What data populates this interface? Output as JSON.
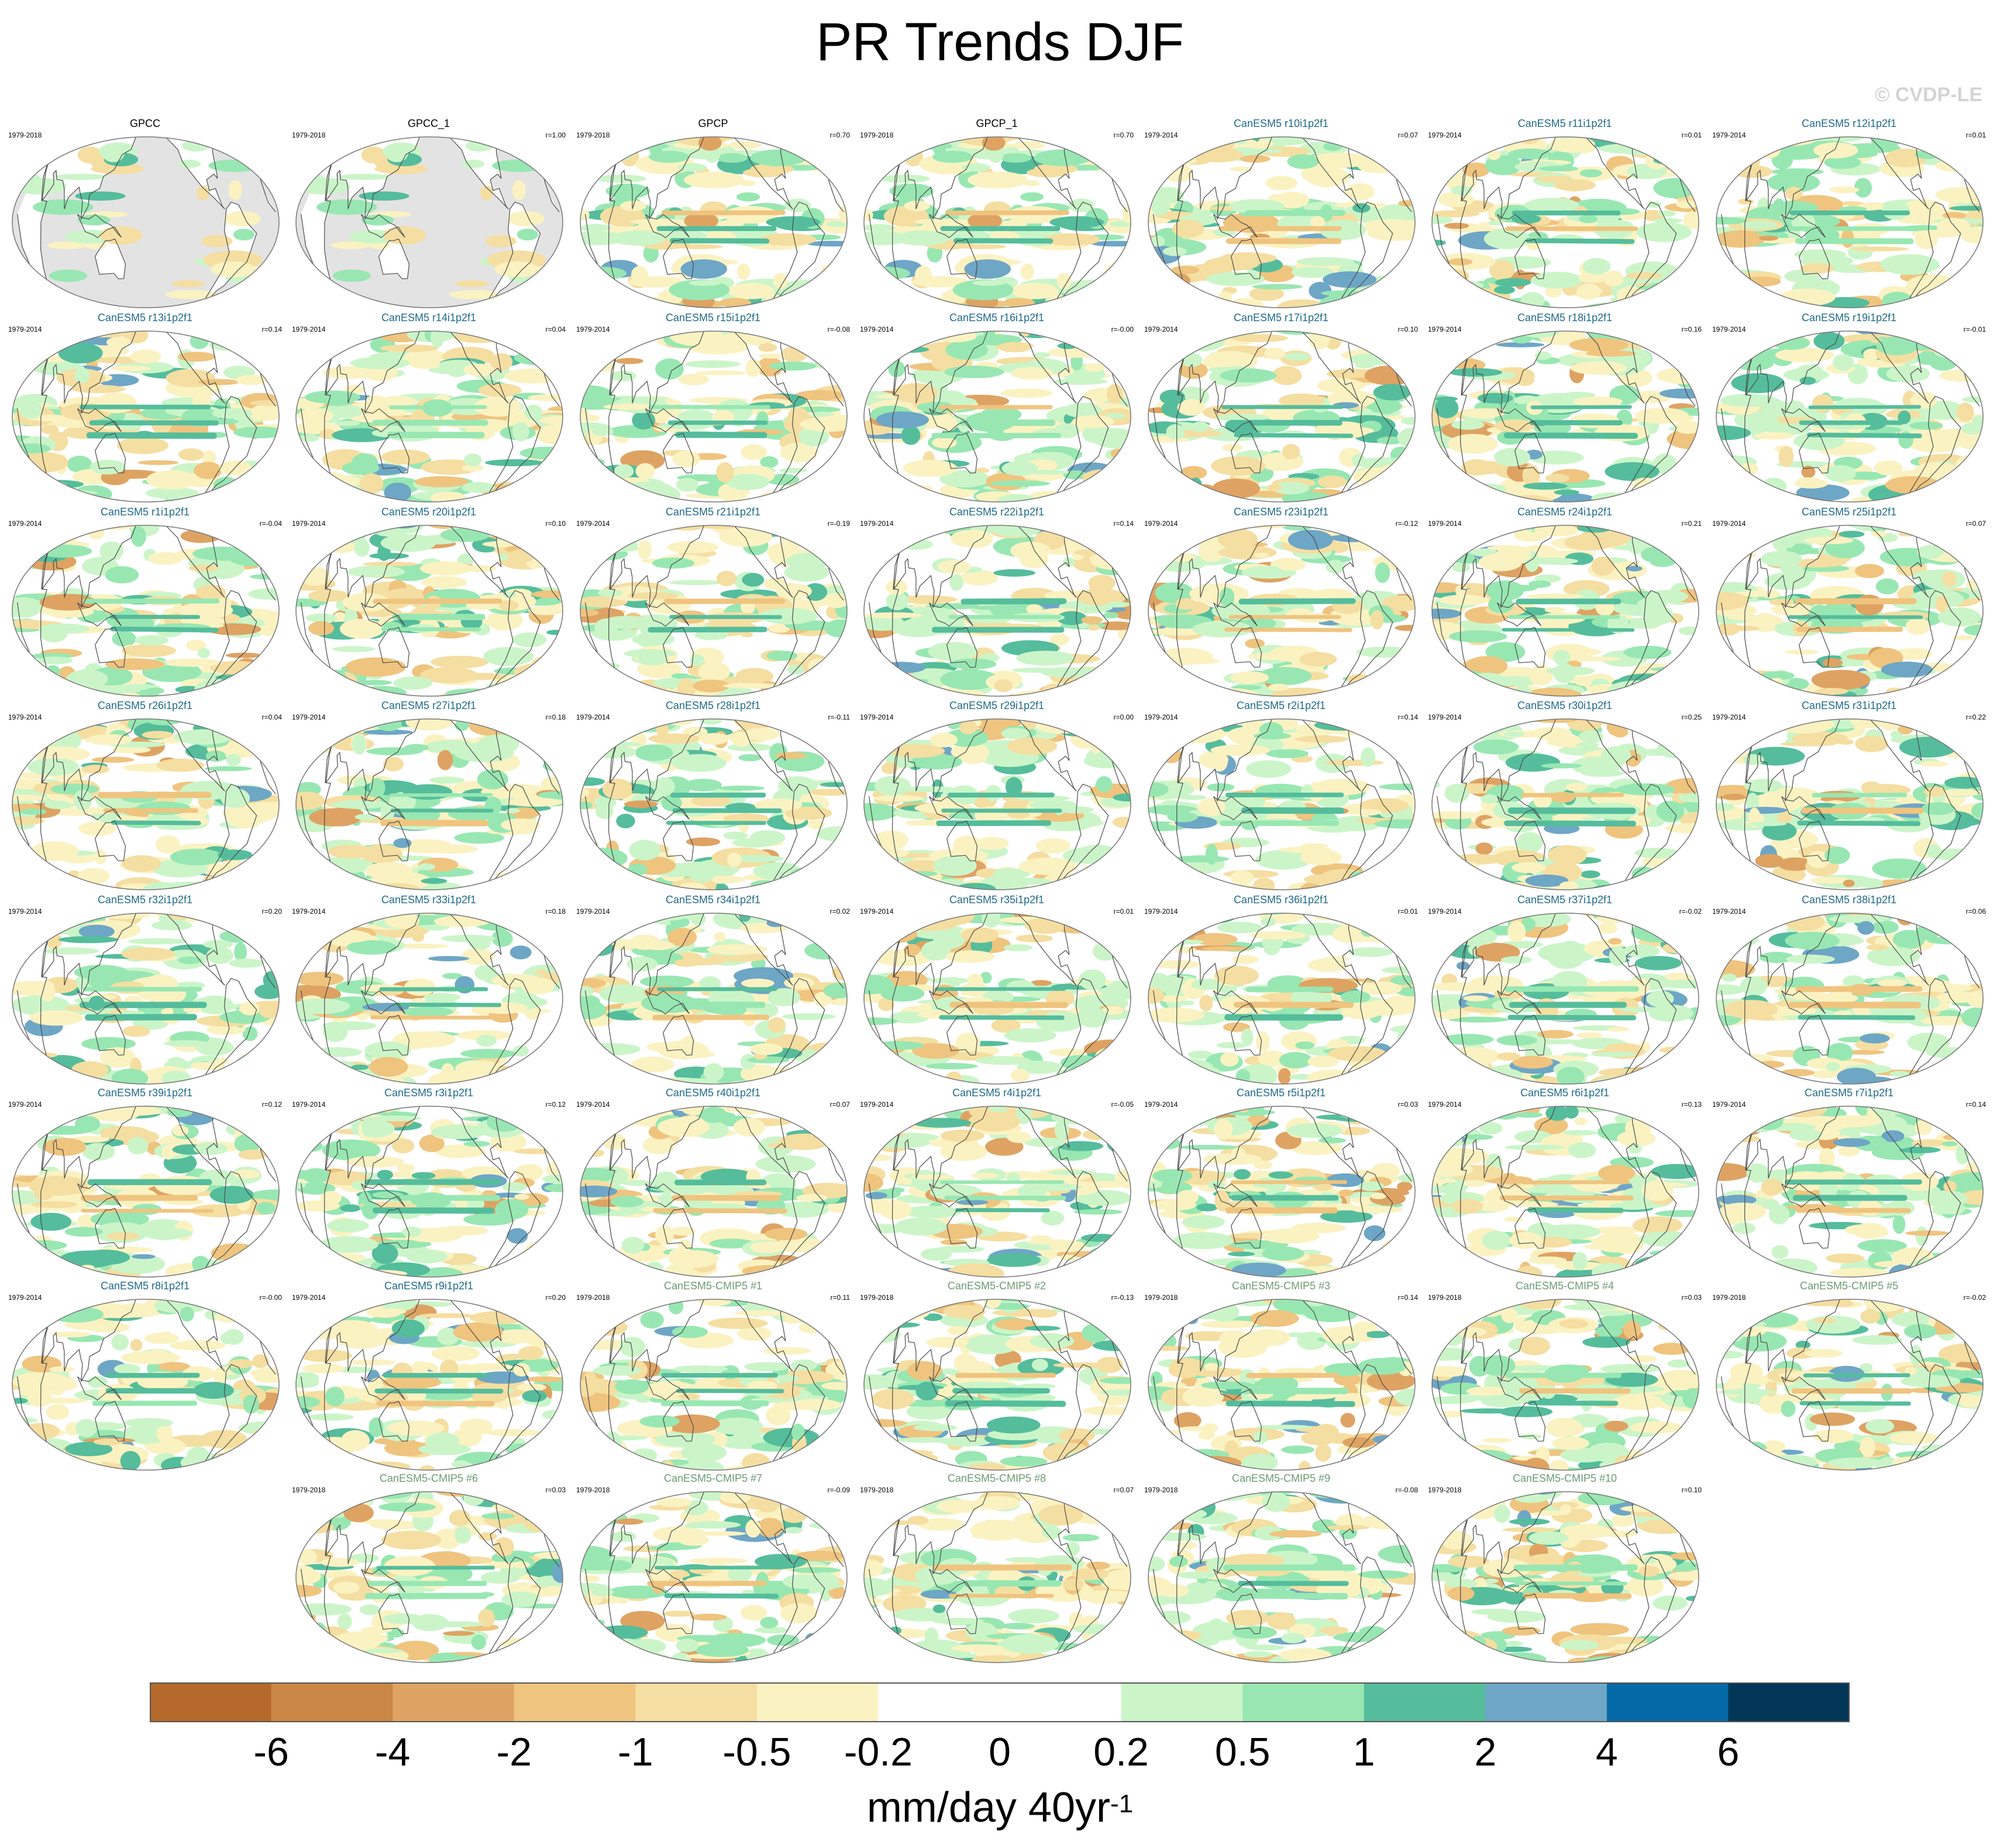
{
  "title": "PR Trends DJF",
  "watermark": "© CVDP-LE",
  "colorbar": {
    "tick_labels": [
      "-6",
      "-4",
      "-2",
      "-1",
      "-0.5",
      "-0.2",
      "0",
      "0.2",
      "0.5",
      "1",
      "2",
      "4",
      "6"
    ],
    "colors": [
      "#b5692b",
      "#cb8745",
      "#dea363",
      "#efc47f",
      "#f5dea1",
      "#fbf2c2",
      "#ffffff",
      "#ffffff",
      "#cbf5c9",
      "#98e7b2",
      "#55bd9c",
      "#6ea6c6",
      "#0669a7",
      "#023657"
    ],
    "units": "mm/day 40yr",
    "units_sup": "-1"
  },
  "chart_data": {
    "type": "heatmap",
    "description_type": "map panels",
    "title": "PR Trends DJF",
    "bounds": [
      -6,
      -4,
      -2,
      -1,
      -0.5,
      -0.2,
      0,
      0.2,
      0.5,
      1,
      2,
      4,
      6
    ],
    "units": "mm/day 40yr-1",
    "panels": [
      {
        "title": "GPCC",
        "years": "1979-2018",
        "r": "",
        "kind": "obs",
        "seed": 1
      },
      {
        "title": "GPCC_1",
        "years": "1979-2018",
        "r": "r=1.00",
        "kind": "obs",
        "seed": 1
      },
      {
        "title": "GPCP",
        "years": "1979-2018",
        "r": "r=0.70",
        "kind": "obs",
        "seed": 3
      },
      {
        "title": "GPCP_1",
        "years": "1979-2018",
        "r": "r=0.70",
        "kind": "obs",
        "seed": 3
      },
      {
        "title": "CanESM5 r10i1p2f1",
        "years": "1979-2014",
        "r": "r=0.07",
        "kind": "mem",
        "seed": 10
      },
      {
        "title": "CanESM5 r11i1p2f1",
        "years": "1979-2014",
        "r": "r=0.01",
        "kind": "mem",
        "seed": 11
      },
      {
        "title": "CanESM5 r12i1p2f1",
        "years": "1979-2014",
        "r": "r=0.01",
        "kind": "mem",
        "seed": 12
      },
      {
        "title": "CanESM5 r13i1p2f1",
        "years": "1979-2014",
        "r": "r=0.14",
        "kind": "mem",
        "seed": 13
      },
      {
        "title": "CanESM5 r14i1p2f1",
        "years": "1979-2014",
        "r": "r=0.04",
        "kind": "mem",
        "seed": 14
      },
      {
        "title": "CanESM5 r15i1p2f1",
        "years": "1979-2014",
        "r": "r=-0.08",
        "kind": "mem",
        "seed": 15
      },
      {
        "title": "CanESM5 r16i1p2f1",
        "years": "1979-2014",
        "r": "r=-0.00",
        "kind": "mem",
        "seed": 16
      },
      {
        "title": "CanESM5 r17i1p2f1",
        "years": "1979-2014",
        "r": "r=0.10",
        "kind": "mem",
        "seed": 17
      },
      {
        "title": "CanESM5 r18i1p2f1",
        "years": "1979-2014",
        "r": "r=0.16",
        "kind": "mem",
        "seed": 18
      },
      {
        "title": "CanESM5 r19i1p2f1",
        "years": "1979-2014",
        "r": "r=-0.01",
        "kind": "mem",
        "seed": 19
      },
      {
        "title": "CanESM5 r1i1p2f1",
        "years": "1979-2014",
        "r": "r=-0.04",
        "kind": "mem",
        "seed": 20
      },
      {
        "title": "CanESM5 r20i1p2f1",
        "years": "1979-2014",
        "r": "r=0.10",
        "kind": "mem",
        "seed": 21
      },
      {
        "title": "CanESM5 r21i1p2f1",
        "years": "1979-2014",
        "r": "r=-0.19",
        "kind": "mem",
        "seed": 22
      },
      {
        "title": "CanESM5 r22i1p2f1",
        "years": "1979-2014",
        "r": "r=0.14",
        "kind": "mem",
        "seed": 23
      },
      {
        "title": "CanESM5 r23i1p2f1",
        "years": "1979-2014",
        "r": "r=-0.12",
        "kind": "mem",
        "seed": 24
      },
      {
        "title": "CanESM5 r24i1p2f1",
        "years": "1979-2014",
        "r": "r=0.21",
        "kind": "mem",
        "seed": 25
      },
      {
        "title": "CanESM5 r25i1p2f1",
        "years": "1979-2014",
        "r": "r=0.07",
        "kind": "mem",
        "seed": 26
      },
      {
        "title": "CanESM5 r26i1p2f1",
        "years": "1979-2014",
        "r": "r=0.04",
        "kind": "mem",
        "seed": 27
      },
      {
        "title": "CanESM5 r27i1p2f1",
        "years": "1979-2014",
        "r": "r=0.18",
        "kind": "mem",
        "seed": 28
      },
      {
        "title": "CanESM5 r28i1p2f1",
        "years": "1979-2014",
        "r": "r=-0.11",
        "kind": "mem",
        "seed": 29
      },
      {
        "title": "CanESM5 r29i1p2f1",
        "years": "1979-2014",
        "r": "r=0.00",
        "kind": "mem",
        "seed": 30
      },
      {
        "title": "CanESM5 r2i1p2f1",
        "years": "1979-2014",
        "r": "r=0.14",
        "kind": "mem",
        "seed": 31
      },
      {
        "title": "CanESM5 r30i1p2f1",
        "years": "1979-2014",
        "r": "r=0.25",
        "kind": "mem",
        "seed": 32
      },
      {
        "title": "CanESM5 r31i1p2f1",
        "years": "1979-2014",
        "r": "r=0.22",
        "kind": "mem",
        "seed": 33
      },
      {
        "title": "CanESM5 r32i1p2f1",
        "years": "1979-2014",
        "r": "r=0.20",
        "kind": "mem",
        "seed": 34
      },
      {
        "title": "CanESM5 r33i1p2f1",
        "years": "1979-2014",
        "r": "r=0.18",
        "kind": "mem",
        "seed": 35
      },
      {
        "title": "CanESM5 r34i1p2f1",
        "years": "1979-2014",
        "r": "r=0.02",
        "kind": "mem",
        "seed": 36
      },
      {
        "title": "CanESM5 r35i1p2f1",
        "years": "1979-2014",
        "r": "r=0.01",
        "kind": "mem",
        "seed": 37
      },
      {
        "title": "CanESM5 r36i1p2f1",
        "years": "1979-2014",
        "r": "r=0.01",
        "kind": "mem",
        "seed": 38
      },
      {
        "title": "CanESM5 r37i1p2f1",
        "years": "1979-2014",
        "r": "r=-0.02",
        "kind": "mem",
        "seed": 39
      },
      {
        "title": "CanESM5 r38i1p2f1",
        "years": "1979-2014",
        "r": "r=0.06",
        "kind": "mem",
        "seed": 40
      },
      {
        "title": "CanESM5 r39i1p2f1",
        "years": "1979-2014",
        "r": "r=0.12",
        "kind": "mem",
        "seed": 41
      },
      {
        "title": "CanESM5 r3i1p2f1",
        "years": "1979-2014",
        "r": "r=0.12",
        "kind": "mem",
        "seed": 42
      },
      {
        "title": "CanESM5 r40i1p2f1",
        "years": "1979-2014",
        "r": "r=0.07",
        "kind": "mem",
        "seed": 43
      },
      {
        "title": "CanESM5 r4i1p2f1",
        "years": "1979-2014",
        "r": "r=-0.05",
        "kind": "mem",
        "seed": 44
      },
      {
        "title": "CanESM5 r5i1p2f1",
        "years": "1979-2014",
        "r": "r=0.03",
        "kind": "mem",
        "seed": 45
      },
      {
        "title": "CanESM5 r6i1p2f1",
        "years": "1979-2014",
        "r": "r=0.13",
        "kind": "mem",
        "seed": 46
      },
      {
        "title": "CanESM5 r7i1p2f1",
        "years": "1979-2014",
        "r": "r=0.14",
        "kind": "mem",
        "seed": 47
      },
      {
        "title": "CanESM5 r8i1p2f1",
        "years": "1979-2014",
        "r": "r=-0.00",
        "kind": "mem",
        "seed": 48
      },
      {
        "title": "CanESM5 r9i1p2f1",
        "years": "1979-2014",
        "r": "r=0.20",
        "kind": "mem",
        "seed": 49
      },
      {
        "title": "CanESM5-CMIP5 #1",
        "years": "1979-2018",
        "r": "r=0.11",
        "kind": "c5",
        "seed": 50
      },
      {
        "title": "CanESM5-CMIP5 #2",
        "years": "1979-2018",
        "r": "r=-0.13",
        "kind": "c5",
        "seed": 51
      },
      {
        "title": "CanESM5-CMIP5 #3",
        "years": "1979-2018",
        "r": "r=0.14",
        "kind": "c5",
        "seed": 52
      },
      {
        "title": "CanESM5-CMIP5 #4",
        "years": "1979-2018",
        "r": "r=0.03",
        "kind": "c5",
        "seed": 53
      },
      {
        "title": "CanESM5-CMIP5 #5",
        "years": "1979-2018",
        "r": "r=-0.02",
        "kind": "c5",
        "seed": 54
      },
      {
        "title": "CanESM5-CMIP5 #6",
        "years": "1979-2018",
        "r": "r=0.03",
        "kind": "c5",
        "seed": 55
      },
      {
        "title": "CanESM5-CMIP5 #7",
        "years": "1979-2018",
        "r": "r=-0.09",
        "kind": "c5",
        "seed": 56
      },
      {
        "title": "CanESM5-CMIP5 #8",
        "years": "1979-2018",
        "r": "r=0.07",
        "kind": "c5",
        "seed": 57
      },
      {
        "title": "CanESM5-CMIP5 #9",
        "years": "1979-2018",
        "r": "r=-0.08",
        "kind": "c5",
        "seed": 58
      },
      {
        "title": "CanESM5-CMIP5 #10",
        "years": "1979-2018",
        "r": "r=0.10",
        "kind": "c5",
        "seed": 59
      }
    ]
  }
}
